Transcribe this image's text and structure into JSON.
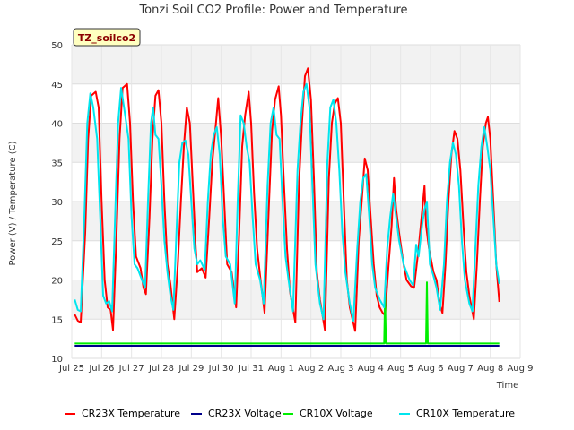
{
  "chart_data": {
    "type": "line",
    "title": "Tonzi Soil CO2 Profile: Power and Temperature",
    "badge": "TZ_soilco2",
    "xlabel": "Time",
    "ylabel": "Power (V) / Temperature (C)",
    "xlim": [
      0,
      15
    ],
    "ylim": [
      10,
      50
    ],
    "x_ticks": [
      {
        "x": 0,
        "label": "Jul 25"
      },
      {
        "x": 1,
        "label": "Jul 26"
      },
      {
        "x": 2,
        "label": "Jul 27"
      },
      {
        "x": 3,
        "label": "Jul 28"
      },
      {
        "x": 4,
        "label": "Jul 29"
      },
      {
        "x": 5,
        "label": "Jul 30"
      },
      {
        "x": 6,
        "label": "Jul 31"
      },
      {
        "x": 7,
        "label": "Aug 1"
      },
      {
        "x": 8,
        "label": "Aug 2"
      },
      {
        "x": 9,
        "label": "Aug 3"
      },
      {
        "x": 10,
        "label": "Aug 4"
      },
      {
        "x": 11,
        "label": "Aug 5"
      },
      {
        "x": 12,
        "label": "Aug 6"
      },
      {
        "x": 13,
        "label": "Aug 7"
      },
      {
        "x": 14,
        "label": "Aug 8"
      },
      {
        "x": 15,
        "label": "Aug 9"
      }
    ],
    "y_ticks": [
      10,
      15,
      20,
      25,
      30,
      35,
      40,
      45,
      50
    ],
    "grid": true,
    "legend_position": "bottom",
    "series": [
      {
        "name": "CR23X Temperature",
        "color": "#ff0000",
        "points": [
          [
            0.1,
            15.6
          ],
          [
            0.2,
            14.8
          ],
          [
            0.3,
            14.6
          ],
          [
            0.45,
            26
          ],
          [
            0.55,
            38
          ],
          [
            0.65,
            43.5
          ],
          [
            0.8,
            44
          ],
          [
            0.9,
            42
          ],
          [
            1.0,
            30
          ],
          [
            1.1,
            20
          ],
          [
            1.2,
            16.5
          ],
          [
            1.3,
            16.2
          ],
          [
            1.38,
            13.6
          ],
          [
            1.5,
            26
          ],
          [
            1.6,
            38
          ],
          [
            1.7,
            44.5
          ],
          [
            1.85,
            45
          ],
          [
            1.95,
            40
          ],
          [
            2.05,
            30
          ],
          [
            2.15,
            23
          ],
          [
            2.3,
            21.5
          ],
          [
            2.4,
            19
          ],
          [
            2.48,
            18.2
          ],
          [
            2.6,
            28
          ],
          [
            2.7,
            38
          ],
          [
            2.8,
            43.5
          ],
          [
            2.9,
            44.2
          ],
          [
            3.0,
            40
          ],
          [
            3.1,
            30
          ],
          [
            3.2,
            22
          ],
          [
            3.3,
            19.5
          ],
          [
            3.43,
            15
          ],
          [
            3.55,
            22
          ],
          [
            3.65,
            30
          ],
          [
            3.75,
            37
          ],
          [
            3.85,
            42
          ],
          [
            3.95,
            40
          ],
          [
            4.05,
            32
          ],
          [
            4.15,
            24
          ],
          [
            4.2,
            21
          ],
          [
            4.35,
            21.5
          ],
          [
            4.48,
            20.3
          ],
          [
            4.6,
            28
          ],
          [
            4.7,
            35
          ],
          [
            4.8,
            39
          ],
          [
            4.9,
            43.2
          ],
          [
            5.0,
            38
          ],
          [
            5.1,
            30
          ],
          [
            5.2,
            22
          ],
          [
            5.35,
            21
          ],
          [
            5.5,
            16.5
          ],
          [
            5.6,
            26
          ],
          [
            5.7,
            37
          ],
          [
            5.8,
            41
          ],
          [
            5.92,
            44
          ],
          [
            6.0,
            40
          ],
          [
            6.1,
            31
          ],
          [
            6.2,
            24
          ],
          [
            6.3,
            20.5
          ],
          [
            6.45,
            15.8
          ],
          [
            6.6,
            30
          ],
          [
            6.7,
            39
          ],
          [
            6.8,
            43
          ],
          [
            6.92,
            44.7
          ],
          [
            7.0,
            41
          ],
          [
            7.1,
            32
          ],
          [
            7.2,
            24
          ],
          [
            7.3,
            18.5
          ],
          [
            7.48,
            14.6
          ],
          [
            7.6,
            32
          ],
          [
            7.7,
            40
          ],
          [
            7.8,
            46
          ],
          [
            7.9,
            47
          ],
          [
            8.0,
            43
          ],
          [
            8.1,
            33
          ],
          [
            8.2,
            21
          ],
          [
            8.3,
            17.5
          ],
          [
            8.47,
            13.6
          ],
          [
            8.6,
            33
          ],
          [
            8.7,
            40
          ],
          [
            8.8,
            42.5
          ],
          [
            8.9,
            43.2
          ],
          [
            9.0,
            40
          ],
          [
            9.1,
            30
          ],
          [
            9.2,
            20
          ],
          [
            9.3,
            16.5
          ],
          [
            9.48,
            13.5
          ],
          [
            9.6,
            25
          ],
          [
            9.7,
            30
          ],
          [
            9.8,
            35.5
          ],
          [
            9.9,
            34
          ],
          [
            10.0,
            28
          ],
          [
            10.1,
            22
          ],
          [
            10.2,
            18
          ],
          [
            10.3,
            16.5
          ],
          [
            10.4,
            15.8
          ],
          [
            10.48,
            15.5
          ],
          [
            10.6,
            22
          ],
          [
            10.7,
            27
          ],
          [
            10.78,
            33
          ],
          [
            10.85,
            29
          ],
          [
            10.95,
            26
          ],
          [
            11.1,
            22
          ],
          [
            11.2,
            20
          ],
          [
            11.35,
            19.2
          ],
          [
            11.45,
            19
          ],
          [
            11.6,
            24
          ],
          [
            11.7,
            28
          ],
          [
            11.8,
            32
          ],
          [
            11.85,
            27
          ],
          [
            11.95,
            24
          ],
          [
            12.1,
            21
          ],
          [
            12.2,
            20
          ],
          [
            12.3,
            17
          ],
          [
            12.4,
            15.8
          ],
          [
            12.5,
            22
          ],
          [
            12.6,
            30
          ],
          [
            12.7,
            36
          ],
          [
            12.8,
            39
          ],
          [
            12.9,
            38
          ],
          [
            13.0,
            34
          ],
          [
            13.1,
            27
          ],
          [
            13.2,
            21
          ],
          [
            13.3,
            18
          ],
          [
            13.45,
            15
          ],
          [
            13.55,
            22
          ],
          [
            13.65,
            30
          ],
          [
            13.75,
            37
          ],
          [
            13.85,
            40
          ],
          [
            13.92,
            40.8
          ],
          [
            14.0,
            38
          ],
          [
            14.1,
            30
          ],
          [
            14.2,
            22
          ],
          [
            14.3,
            17.2
          ]
        ]
      },
      {
        "name": "CR23X Voltage",
        "color": "#00008b",
        "points": [
          [
            0.1,
            11.6
          ],
          [
            14.3,
            11.6
          ]
        ]
      },
      {
        "name": "CR10X Voltage",
        "color": "#00ee00",
        "points": [
          [
            0.1,
            11.9
          ],
          [
            10.45,
            11.9
          ],
          [
            10.48,
            18.1
          ],
          [
            10.51,
            11.9
          ],
          [
            11.85,
            11.9
          ],
          [
            11.88,
            19.7
          ],
          [
            11.91,
            11.9
          ],
          [
            14.3,
            11.9
          ]
        ]
      },
      {
        "name": "CR10X Temperature",
        "color": "#00e5ee",
        "points": [
          [
            0.1,
            17.5
          ],
          [
            0.2,
            16.2
          ],
          [
            0.3,
            16
          ],
          [
            0.42,
            28
          ],
          [
            0.52,
            40
          ],
          [
            0.62,
            43.8
          ],
          [
            0.72,
            42
          ],
          [
            0.85,
            38
          ],
          [
            0.95,
            28
          ],
          [
            1.05,
            18
          ],
          [
            1.15,
            17
          ],
          [
            1.25,
            17.3
          ],
          [
            1.35,
            16
          ],
          [
            1.45,
            28
          ],
          [
            1.55,
            40
          ],
          [
            1.65,
            44.5
          ],
          [
            1.75,
            42
          ],
          [
            1.9,
            38
          ],
          [
            2.0,
            28
          ],
          [
            2.1,
            22
          ],
          [
            2.2,
            21.5
          ],
          [
            2.35,
            20
          ],
          [
            2.45,
            19
          ],
          [
            2.55,
            30
          ],
          [
            2.65,
            40
          ],
          [
            2.72,
            42
          ],
          [
            2.8,
            38.5
          ],
          [
            2.9,
            38
          ],
          [
            3.0,
            32
          ],
          [
            3.1,
            25
          ],
          [
            3.2,
            21
          ],
          [
            3.3,
            18
          ],
          [
            3.4,
            16.2
          ],
          [
            3.5,
            26
          ],
          [
            3.6,
            35
          ],
          [
            3.7,
            37.5
          ],
          [
            3.8,
            37.8
          ],
          [
            3.9,
            36
          ],
          [
            4.0,
            30
          ],
          [
            4.1,
            24
          ],
          [
            4.2,
            22
          ],
          [
            4.3,
            22.5
          ],
          [
            4.45,
            21.3
          ],
          [
            4.55,
            30
          ],
          [
            4.65,
            36
          ],
          [
            4.75,
            38.5
          ],
          [
            4.85,
            39.5
          ],
          [
            4.95,
            36
          ],
          [
            5.05,
            28
          ],
          [
            5.15,
            23
          ],
          [
            5.3,
            22
          ],
          [
            5.45,
            17
          ],
          [
            5.55,
            30
          ],
          [
            5.65,
            41
          ],
          [
            5.75,
            40
          ],
          [
            5.85,
            37
          ],
          [
            5.95,
            35
          ],
          [
            6.05,
            28
          ],
          [
            6.15,
            22
          ],
          [
            6.3,
            20
          ],
          [
            6.42,
            17
          ],
          [
            6.55,
            32
          ],
          [
            6.65,
            40
          ],
          [
            6.75,
            42
          ],
          [
            6.85,
            38.5
          ],
          [
            6.95,
            38
          ],
          [
            7.05,
            30
          ],
          [
            7.15,
            23
          ],
          [
            7.25,
            20
          ],
          [
            7.4,
            16
          ],
          [
            7.55,
            34
          ],
          [
            7.65,
            40
          ],
          [
            7.75,
            44
          ],
          [
            7.85,
            45
          ],
          [
            7.95,
            42
          ],
          [
            8.05,
            32
          ],
          [
            8.15,
            22
          ],
          [
            8.3,
            17
          ],
          [
            8.42,
            15
          ],
          [
            8.55,
            35
          ],
          [
            8.65,
            42
          ],
          [
            8.75,
            43
          ],
          [
            8.85,
            40
          ],
          [
            8.95,
            34
          ],
          [
            9.05,
            26
          ],
          [
            9.15,
            21
          ],
          [
            9.3,
            17
          ],
          [
            9.42,
            14.8
          ],
          [
            9.55,
            24
          ],
          [
            9.65,
            30
          ],
          [
            9.75,
            33
          ],
          [
            9.85,
            33.5
          ],
          [
            9.95,
            28
          ],
          [
            10.05,
            22
          ],
          [
            10.15,
            19
          ],
          [
            10.3,
            17.5
          ],
          [
            10.45,
            16.5
          ],
          [
            10.55,
            24
          ],
          [
            10.65,
            28
          ],
          [
            10.75,
            31
          ],
          [
            10.85,
            28
          ],
          [
            10.95,
            25
          ],
          [
            11.1,
            22
          ],
          [
            11.2,
            21
          ],
          [
            11.3,
            20
          ],
          [
            11.42,
            19.3
          ],
          [
            11.52,
            24.5
          ],
          [
            11.6,
            23
          ],
          [
            11.72,
            27
          ],
          [
            11.8,
            29
          ],
          [
            11.88,
            30
          ],
          [
            11.98,
            22
          ],
          [
            12.1,
            20.5
          ],
          [
            12.2,
            19
          ],
          [
            12.32,
            16.2
          ],
          [
            12.45,
            22
          ],
          [
            12.55,
            30
          ],
          [
            12.65,
            35
          ],
          [
            12.75,
            37.5
          ],
          [
            12.85,
            36
          ],
          [
            12.95,
            32
          ],
          [
            13.05,
            25
          ],
          [
            13.15,
            20
          ],
          [
            13.3,
            17
          ],
          [
            13.4,
            16
          ],
          [
            13.5,
            24
          ],
          [
            13.6,
            32
          ],
          [
            13.7,
            37
          ],
          [
            13.8,
            39.5
          ],
          [
            13.9,
            37
          ],
          [
            14.0,
            34
          ],
          [
            14.1,
            28
          ],
          [
            14.2,
            22
          ],
          [
            14.3,
            19.5
          ]
        ]
      }
    ]
  }
}
